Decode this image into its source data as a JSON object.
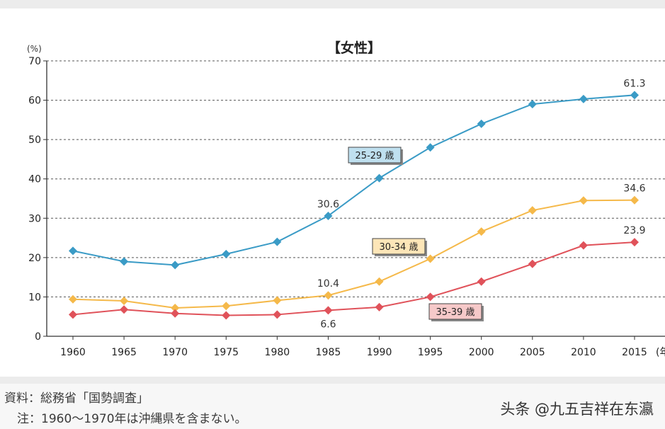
{
  "chart_data": {
    "type": "line",
    "title": "【女性】",
    "ylabel": "(%)",
    "xlabel_suffix": "(年",
    "ylim": [
      0,
      70
    ],
    "yticks": [
      0,
      10,
      20,
      30,
      40,
      50,
      60,
      70
    ],
    "grid": "horizontal dotted",
    "categories": [
      "1960",
      "1965",
      "1970",
      "1975",
      "1980",
      "1985",
      "1990",
      "1995",
      "2000",
      "2005",
      "2010",
      "2015"
    ],
    "series": [
      {
        "name": "25-29 歳",
        "color": "#3a9bc6",
        "label_fill": "#bfe0ef",
        "values": [
          21.7,
          19.0,
          18.1,
          20.9,
          24.0,
          30.6,
          40.2,
          48.0,
          54.0,
          59.0,
          60.3,
          61.3
        ],
        "value_labels": [
          {
            "index": 5,
            "text": "30.6",
            "pos": "above"
          },
          {
            "index": 11,
            "text": "61.3",
            "pos": "above"
          }
        ]
      },
      {
        "name": "30-34 歳",
        "color": "#f5b94a",
        "label_fill": "#fde6b8",
        "values": [
          9.4,
          9.0,
          7.2,
          7.7,
          9.1,
          10.4,
          13.9,
          19.7,
          26.6,
          32.0,
          34.5,
          34.6
        ],
        "value_labels": [
          {
            "index": 5,
            "text": "10.4",
            "pos": "above"
          },
          {
            "index": 11,
            "text": "34.6",
            "pos": "above"
          }
        ]
      },
      {
        "name": "35-39 歳",
        "color": "#e0525a",
        "label_fill": "#f6c9c9",
        "values": [
          5.5,
          6.8,
          5.8,
          5.3,
          5.5,
          6.6,
          7.4,
          10.0,
          13.9,
          18.4,
          23.1,
          23.9
        ],
        "value_labels": [
          {
            "index": 5,
            "text": "6.6",
            "pos": "below"
          },
          {
            "index": 11,
            "text": "23.9",
            "pos": "above"
          }
        ]
      }
    ]
  },
  "footer": {
    "source": "資料：総務省「国勢調査」",
    "note": "注：1960〜1970年は沖縄県を含まない。",
    "watermark": "头条 @九五吉祥在东瀛"
  }
}
